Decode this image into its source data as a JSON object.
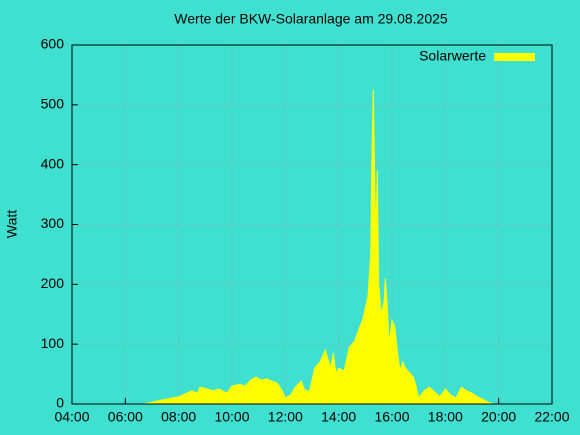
{
  "chart_data": {
    "type": "area",
    "title": "Werte der BKW-Solaranlage am 29.08.2025",
    "y_label": "Watt",
    "series": [
      {
        "name": "Solarwerte",
        "color": "#ffff00",
        "x": [
          6.67,
          7.0,
          7.5,
          8.0,
          8.3,
          8.5,
          8.7,
          8.8,
          9.0,
          9.3,
          9.5,
          9.8,
          10.0,
          10.3,
          10.5,
          10.7,
          10.9,
          11.1,
          11.3,
          11.5,
          11.7,
          11.9,
          12.0,
          12.2,
          12.4,
          12.6,
          12.7,
          12.9,
          13.1,
          13.3,
          13.5,
          13.6,
          13.7,
          13.8,
          13.9,
          14.0,
          14.2,
          14.4,
          14.6,
          14.8,
          14.9,
          15.0,
          15.1,
          15.2,
          15.25,
          15.3,
          15.35,
          15.4,
          15.45,
          15.5,
          15.6,
          15.7,
          15.75,
          15.8,
          15.9,
          16.0,
          16.1,
          16.2,
          16.3,
          16.4,
          16.5,
          16.7,
          16.8,
          16.9,
          17.0,
          17.2,
          17.4,
          17.6,
          17.8,
          18.0,
          18.2,
          18.4,
          18.6,
          18.8,
          19.0,
          19.2,
          19.4,
          19.6,
          19.8
        ],
        "values": [
          0,
          3,
          8,
          12,
          18,
          22,
          18,
          28,
          26,
          22,
          25,
          18,
          30,
          33,
          30,
          40,
          45,
          40,
          42,
          38,
          35,
          20,
          10,
          15,
          30,
          38,
          25,
          20,
          60,
          70,
          90,
          75,
          60,
          85,
          50,
          60,
          55,
          95,
          105,
          130,
          140,
          160,
          180,
          250,
          420,
          525,
          380,
          280,
          390,
          200,
          150,
          170,
          210,
          180,
          100,
          140,
          130,
          90,
          55,
          70,
          60,
          50,
          45,
          30,
          10,
          22,
          28,
          20,
          12,
          25,
          15,
          10,
          28,
          22,
          18,
          12,
          8,
          3,
          0
        ]
      }
    ],
    "xlim": [
      4,
      22
    ],
    "xticks": [
      {
        "value": 4,
        "label": "04:00"
      },
      {
        "value": 6,
        "label": "06:00"
      },
      {
        "value": 8,
        "label": "08:00"
      },
      {
        "value": 10,
        "label": "10:00"
      },
      {
        "value": 12,
        "label": "12:00"
      },
      {
        "value": 14,
        "label": "14:00"
      },
      {
        "value": 16,
        "label": "16:00"
      },
      {
        "value": 18,
        "label": "18:00"
      },
      {
        "value": 20,
        "label": "20:00"
      },
      {
        "value": 22,
        "label": "22:00"
      }
    ],
    "ylim": [
      0,
      600
    ],
    "yticks": [
      0,
      100,
      200,
      300,
      400,
      500,
      600
    ],
    "grid": true,
    "legend": "top-right"
  }
}
